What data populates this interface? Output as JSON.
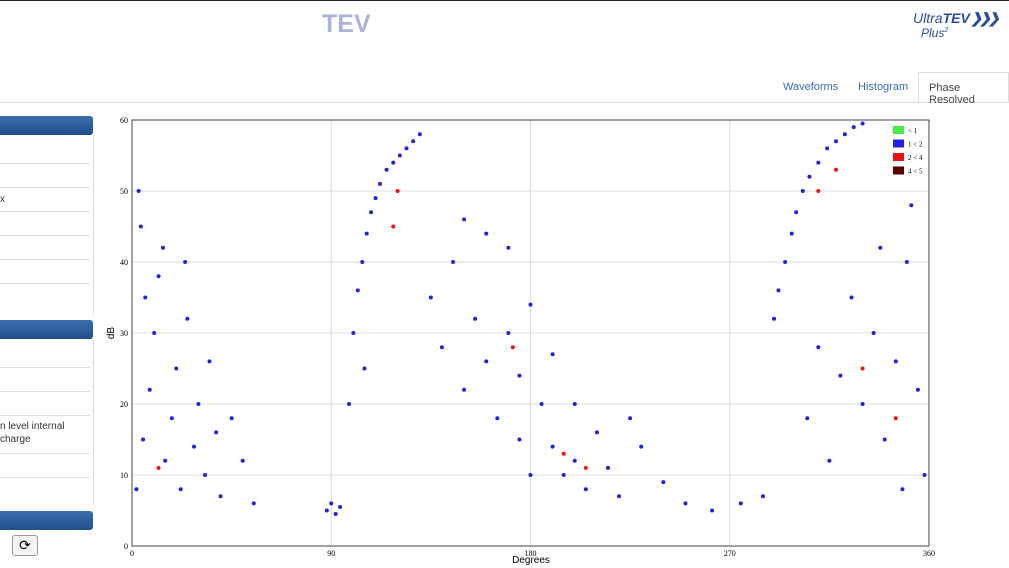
{
  "header": {
    "title": "TEV",
    "logo": {
      "ultra": "Ultra",
      "tev": "TEV",
      "plus": "Plus",
      "sup": "2"
    }
  },
  "tabs": [
    "Waveforms",
    "Histogram",
    "Phase Resolved"
  ],
  "sidebar": {
    "items": [
      "x",
      "n level internal",
      "charge"
    ]
  },
  "chart_data": {
    "type": "scatter",
    "xlabel": "Degrees",
    "ylabel": "dB",
    "xlim": [
      0,
      360
    ],
    "xticks": [
      0,
      90,
      180,
      270,
      360
    ],
    "ylim": [
      0,
      60
    ],
    "yticks": [
      0,
      10,
      20,
      30,
      40,
      50,
      60
    ],
    "grid": true,
    "legend": "upper right",
    "series": [
      {
        "name": "< 1",
        "color": "#44ee44",
        "x": [],
        "values": []
      },
      {
        "name": "1 < 2",
        "color": "#2222dd",
        "x": [
          2,
          5,
          8,
          10,
          12,
          4,
          15,
          18,
          20,
          22,
          25,
          28,
          30,
          33,
          35,
          38,
          40,
          6,
          14,
          45,
          50,
          55,
          3,
          24,
          88,
          90,
          92,
          94,
          100,
          102,
          104,
          106,
          108,
          110,
          112,
          115,
          118,
          121,
          124,
          127,
          130,
          105,
          98,
          135,
          140,
          145,
          150,
          155,
          160,
          165,
          170,
          175,
          180,
          185,
          190,
          195,
          200,
          205,
          210,
          215,
          220,
          225,
          160,
          150,
          170,
          180,
          190,
          230,
          240,
          200,
          175,
          250,
          262,
          275,
          285,
          290,
          292,
          295,
          298,
          300,
          303,
          306,
          310,
          314,
          318,
          322,
          326,
          330,
          305,
          310,
          315,
          320,
          325,
          330,
          335,
          340,
          345,
          350,
          355,
          358,
          348,
          338,
          352
        ],
        "values": [
          8,
          15,
          22,
          30,
          38,
          45,
          12,
          18,
          25,
          8,
          32,
          14,
          20,
          10,
          26,
          16,
          7,
          35,
          42,
          18,
          12,
          6,
          50,
          40,
          5,
          6,
          4.5,
          5.5,
          30,
          36,
          40,
          44,
          47,
          49,
          51,
          53,
          54,
          55,
          56,
          57,
          58,
          25,
          20,
          35,
          28,
          40,
          22,
          32,
          26,
          18,
          30,
          24,
          34,
          20,
          14,
          10,
          12,
          8,
          16,
          11,
          7,
          18,
          44,
          46,
          42,
          10,
          27,
          14,
          9,
          20,
          15,
          6,
          5,
          6,
          7,
          32,
          36,
          40,
          44,
          47,
          50,
          52,
          54,
          56,
          57,
          58,
          59,
          59.5,
          18,
          28,
          12,
          24,
          35,
          20,
          30,
          15,
          26,
          40,
          22,
          10,
          8,
          42,
          48
        ]
      },
      {
        "name": "2 < 4",
        "color": "#ee1111",
        "x": [
          12,
          120,
          118,
          172,
          195,
          205,
          310,
          318,
          345,
          330
        ],
        "values": [
          11,
          50,
          45,
          28,
          13,
          11,
          50,
          53,
          18,
          25
        ]
      },
      {
        "name": "4 < 5",
        "color": "#550000",
        "x": [],
        "values": []
      }
    ]
  }
}
